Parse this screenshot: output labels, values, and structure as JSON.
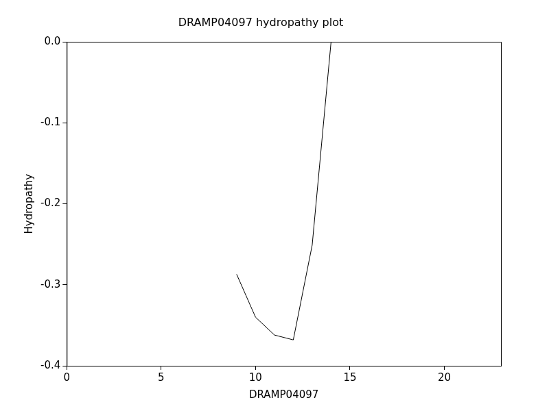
{
  "chart_data": {
    "type": "line",
    "title": "DRAMP04097 hydropathy plot",
    "x_label": "DRAMP04097",
    "y_label": "Hydropathy",
    "x": [
      9,
      10,
      11,
      12,
      13,
      14
    ],
    "values": [
      -0.287,
      -0.34,
      -0.362,
      -0.368,
      -0.251,
      0.0
    ],
    "color": "#000000",
    "xlim": [
      0,
      23
    ],
    "xticks": [
      0,
      5,
      10,
      15,
      20
    ],
    "ylim": [
      -0.4,
      0
    ],
    "yticks": [
      -0.4,
      -0.3,
      -0.2,
      -0.1,
      {
        "value": 0,
        "label": "0.0"
      }
    ],
    "grid": false
  }
}
